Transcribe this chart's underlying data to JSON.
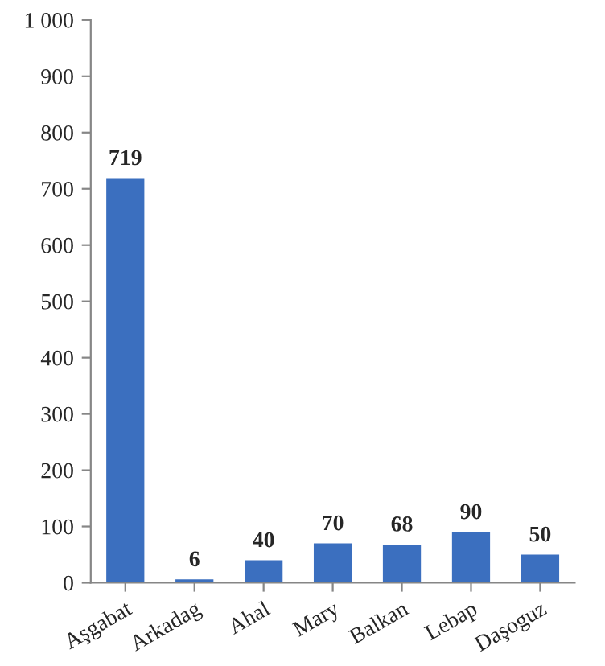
{
  "chart_data": {
    "type": "bar",
    "categories": [
      "Aşgabat",
      "Arkadag",
      "Ahal",
      "Mary",
      "Balkan",
      "Lebap",
      "Daşoguz"
    ],
    "values": [
      719,
      6,
      40,
      70,
      68,
      90,
      50
    ],
    "color": "#3b6fbf",
    "ylim": [
      0,
      1000
    ],
    "yticks": [
      0,
      100,
      200,
      300,
      400,
      500,
      600,
      700,
      800,
      900,
      {
        "value": 1000,
        "label": "1 000"
      }
    ],
    "data_labels": true
  }
}
